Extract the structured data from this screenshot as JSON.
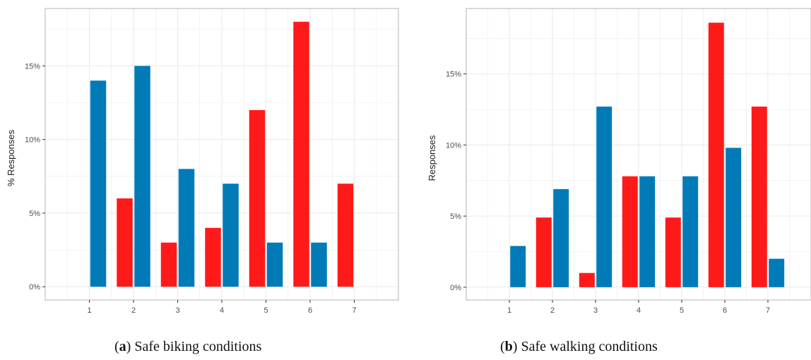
{
  "colors": {
    "red": "#ff1a1a",
    "blue": "#007bb8",
    "panel_border": "#b3b3b3",
    "grid": "#ebebeb"
  },
  "panels": [
    {
      "id": "a",
      "caption": {
        "letter": "a",
        "text": "Safe biking conditions"
      },
      "chart_data": {
        "type": "bar",
        "categories": [
          "1",
          "2",
          "3",
          "4",
          "5",
          "6",
          "7"
        ],
        "series": [
          {
            "color": "red",
            "values": [
              null,
              6,
              3,
              4,
              12,
              18,
              7
            ]
          },
          {
            "color": "blue",
            "values": [
              14,
              15,
              8,
              7,
              3,
              3,
              null
            ]
          }
        ],
        "ylabel": "% Responses",
        "ylim": [
          -0.9,
          18.9
        ],
        "yticks": [
          0,
          5,
          10,
          15
        ],
        "ytick_labels": [
          "0%",
          "5%",
          "10%",
          "15%"
        ],
        "grid": true
      }
    },
    {
      "id": "b",
      "caption": {
        "letter": "b",
        "text": "Safe walking conditions"
      },
      "chart_data": {
        "type": "bar",
        "categories": [
          "1",
          "2",
          "3",
          "4",
          "5",
          "6",
          "7"
        ],
        "series": [
          {
            "color": "red",
            "values": [
              null,
              4.9,
              1,
              7.8,
              4.9,
              18.6,
              12.7
            ]
          },
          {
            "color": "blue",
            "values": [
              2.9,
              6.9,
              12.7,
              7.8,
              7.8,
              9.8,
              2
            ]
          }
        ],
        "ylabel": "Responses",
        "ylim": [
          -0.9,
          19.6
        ],
        "yticks": [
          0,
          5,
          10,
          15
        ],
        "ytick_labels": [
          "0%",
          "5%",
          "10%",
          "15%"
        ],
        "grid": true
      }
    }
  ]
}
